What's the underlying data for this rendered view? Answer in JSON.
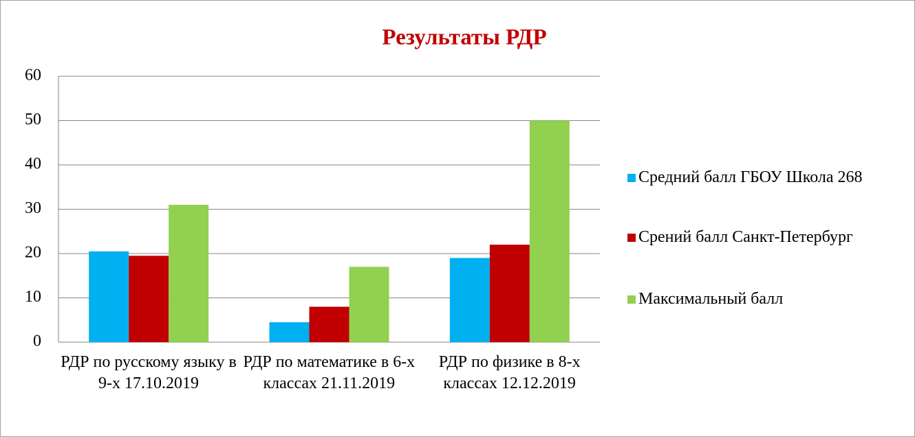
{
  "chart_data": {
    "type": "bar",
    "title": "Результаты РДР",
    "categories": [
      "РДР по русскому языку в 9-х 17.10.2019",
      "РДР по математике в 6-х классах 21.11.2019",
      "РДР по физике в 8-х классах 12.12.2019"
    ],
    "series": [
      {
        "name": "Средний балл ГБОУ Школа 268",
        "color": "#00b0f0",
        "values": [
          20.5,
          4.5,
          19
        ]
      },
      {
        "name": "Срений балл Санкт-Петербург",
        "color": "#c00000",
        "values": [
          19.5,
          8,
          22
        ]
      },
      {
        "name": "Максимальный балл",
        "color": "#92d050",
        "values": [
          31,
          17,
          50
        ]
      }
    ],
    "ylim": [
      0,
      60
    ],
    "yticks": [
      0,
      10,
      20,
      30,
      40,
      50,
      60
    ],
    "grid": true,
    "legend": "right"
  }
}
